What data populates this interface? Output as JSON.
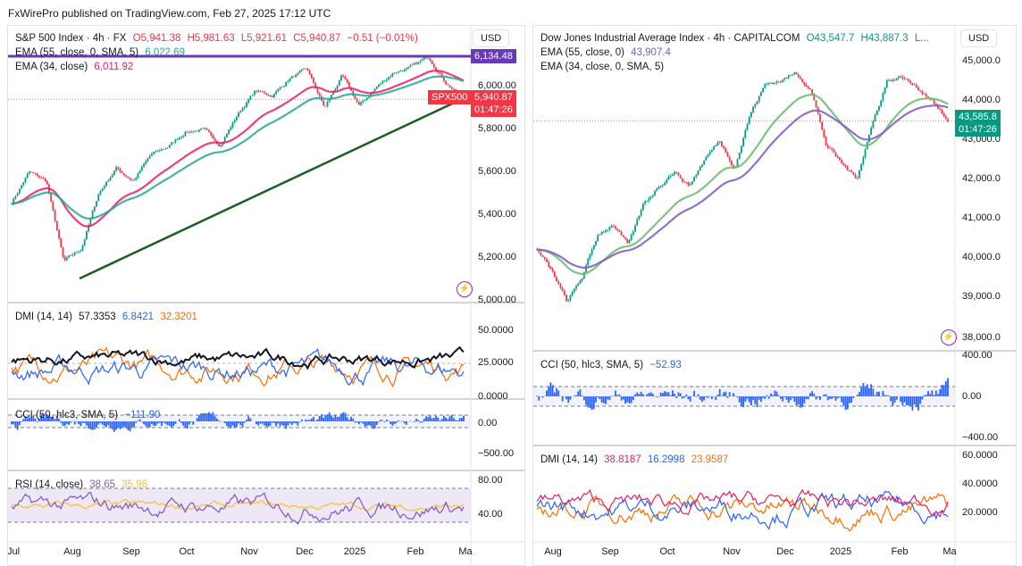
{
  "header": {
    "text": "FxWirePro published on TradingView.com, Feb 27, 2025 17:12 UTC"
  },
  "left": {
    "currency": "USD",
    "title": "S&P 500 Index · 4h · FX",
    "ohlc": {
      "o": "O5,941.38",
      "h": "H5,981.63",
      "l": "L5,921.61",
      "c": "C5,940.87",
      "chg": "−0.51 (−0.01%)"
    },
    "ema55": {
      "label": "EMA (55, close, 0, SMA, 5)",
      "value": "6,022.69"
    },
    "ema34": {
      "label": "EMA (34, close)",
      "value": "6,011.92"
    },
    "price_tags": {
      "top": "6,134.48",
      "symbol": "SPX500",
      "last": "5,940.87",
      "countdown": "01:47:26"
    },
    "price_axis": [
      "6,000.00",
      "5,800.00",
      "5,600.00",
      "5,400.00",
      "5,200.00",
      "5,000.00"
    ],
    "dmi": {
      "label": "DMI (14, 14)",
      "v1": "57.3353",
      "v2": "6.8421",
      "v3": "32.3201",
      "axis": [
        "50.0000",
        "25.0000",
        "0.0000"
      ]
    },
    "cci": {
      "label": "CCI (50, hlc3, SMA, 5)",
      "value": "−111.90",
      "axis": [
        "0.00",
        "−500.00"
      ]
    },
    "rsi": {
      "label": "RSI (14, close)",
      "v1": "38.65",
      "v2": "35.96",
      "axis": [
        "80.00",
        "40.00"
      ]
    },
    "time_axis": [
      "Jul",
      "Aug",
      "Sep",
      "Oct",
      "Nov",
      "Dec",
      "2025",
      "Feb",
      "Ma"
    ]
  },
  "right": {
    "currency": "USD",
    "title": "Dow Jones Industrial Average Index · 4h · CAPITALCOM",
    "ohlc": {
      "o": "O43,547.7",
      "h": "H43,887.3",
      "l": "L..."
    },
    "ema55": {
      "label": "EMA (55, close, 0)",
      "value": "43,907.4"
    },
    "ema34": {
      "label": "EMA (34, close, 0, SMA, 5)"
    },
    "price_tags": {
      "last": "43,585.8",
      "countdown": "01:47:26"
    },
    "price_axis": [
      "45,000.0",
      "44,000.0",
      "43,000.0",
      "42,000.0",
      "41,000.0",
      "40,000.0",
      "39,000.0",
      "38,000.0"
    ],
    "cci": {
      "label": "CCI (50, hlc3, SMA, 5)",
      "value": "−52.93",
      "axis": [
        "400.00",
        "0.00",
        "−400.00"
      ]
    },
    "dmi": {
      "label": "DMI (14, 14)",
      "v1": "38.8187",
      "v2": "16.2998",
      "v3": "23.9587",
      "axis": [
        "60.0000",
        "40.0000",
        "20.0000"
      ]
    },
    "time_axis": [
      "Aug",
      "Sep",
      "Oct",
      "Nov",
      "Dec",
      "2025",
      "Feb",
      "Ma"
    ]
  },
  "colors": {
    "up": "#089981",
    "down": "#f23645",
    "ema55": "#26a69a",
    "ema34_left": "#e91e63",
    "ema_right_a": "#7e57c2",
    "ema_right_b": "#66bb6a",
    "trend": "#1b5e20",
    "hline": "#673ab7",
    "dmi_black": "#131722",
    "dmi_blue": "#2962ff",
    "dmi_orange": "#ff6d00",
    "cci": "#2962ff",
    "rsi": "#7e57c2",
    "rsi_ma": "#fbc02d"
  },
  "chart_data": [
    {
      "type": "line",
      "title": "S&P 500 Index · 4h · FX",
      "x": [
        "Jul",
        "Aug",
        "Sep",
        "Oct",
        "Nov",
        "Dec",
        "2025",
        "Feb",
        "Ma"
      ],
      "series": [
        {
          "name": "S&P 500 Index · 4h · FX",
          "values": [
            5520,
            5200,
            5550,
            5750,
            5780,
            6060,
            5900,
            6090,
            5941
          ]
        }
      ],
      "ylim": [
        5000,
        6150
      ],
      "annotations": {
        "horizontal_line": 6134.48,
        "trendline": [
          [
            5120,
            "Aug"
          ],
          [
            5940,
            "Ma"
          ]
        ]
      }
    },
    {
      "type": "line",
      "title": "Dow Jones Industrial Average Index · 4h · CAPITALCOM",
      "x": [
        "Aug",
        "Sep",
        "Oct",
        "Nov",
        "Dec",
        "2025",
        "Feb",
        "Ma"
      ],
      "series": [
        {
          "name": "Dow Jones Industrial Average Index · 4h · CAPITALCOM",
          "values": [
            40000,
            40900,
            42200,
            44000,
            44900,
            42500,
            44800,
            43586
          ]
        }
      ],
      "ylim": [
        37800,
        45200
      ]
    }
  ]
}
